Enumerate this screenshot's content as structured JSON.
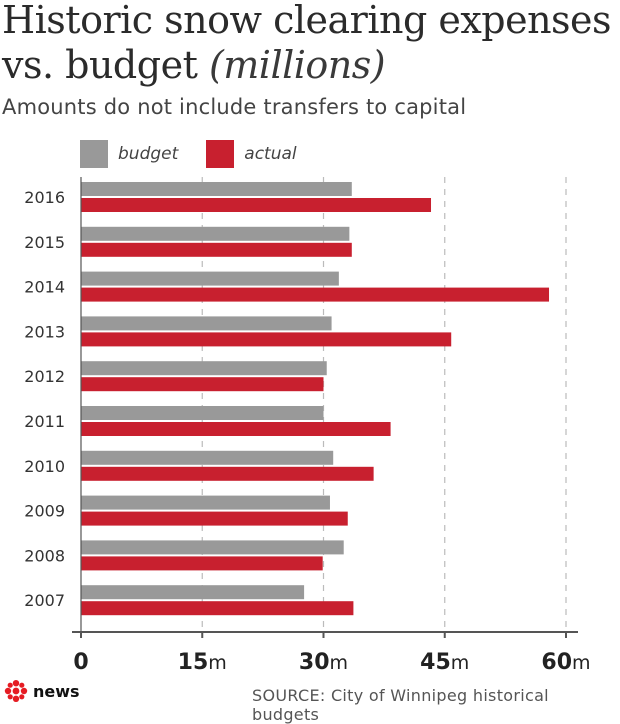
{
  "header": {
    "title": "Historic snow clearing expenses vs. budget",
    "title_unit": "(millions)",
    "subtitle": "Amounts do not include transfers to capital"
  },
  "legend": {
    "budget_label": "budget",
    "actual_label": "actual"
  },
  "colors": {
    "budget": "#999999",
    "actual": "#c8202f",
    "grid": "#bbbbbb",
    "axis": "#555555",
    "logo": "#e51c23"
  },
  "chart_data": {
    "type": "bar",
    "orientation": "horizontal",
    "title": "Historic snow clearing expenses vs. budget (millions)",
    "subtitle": "Amounts do not include transfers to capital",
    "categories": [
      "2016",
      "2015",
      "2014",
      "2013",
      "2012",
      "2011",
      "2010",
      "2009",
      "2008",
      "2007"
    ],
    "series": [
      {
        "name": "budget",
        "values": [
          33.5,
          33.2,
          31.9,
          31.0,
          30.4,
          30.0,
          31.2,
          30.8,
          32.5,
          27.6
        ]
      },
      {
        "name": "actual",
        "values": [
          43.3,
          33.5,
          57.9,
          45.8,
          30.0,
          38.3,
          36.2,
          33.0,
          29.9,
          33.7
        ]
      }
    ],
    "x_ticks": [
      {
        "value": 0,
        "number": "0",
        "unit": ""
      },
      {
        "value": 15,
        "number": "15",
        "unit": "m"
      },
      {
        "value": 30,
        "number": "30",
        "unit": "m"
      },
      {
        "value": 45,
        "number": "45",
        "unit": "m"
      },
      {
        "value": 60,
        "number": "60",
        "unit": "m"
      }
    ],
    "xlim": [
      0,
      60
    ],
    "grid": true,
    "legend_position": "top-left"
  },
  "footer": {
    "brand": "news",
    "source": "SOURCE: City of Winnipeg historical budgets"
  }
}
